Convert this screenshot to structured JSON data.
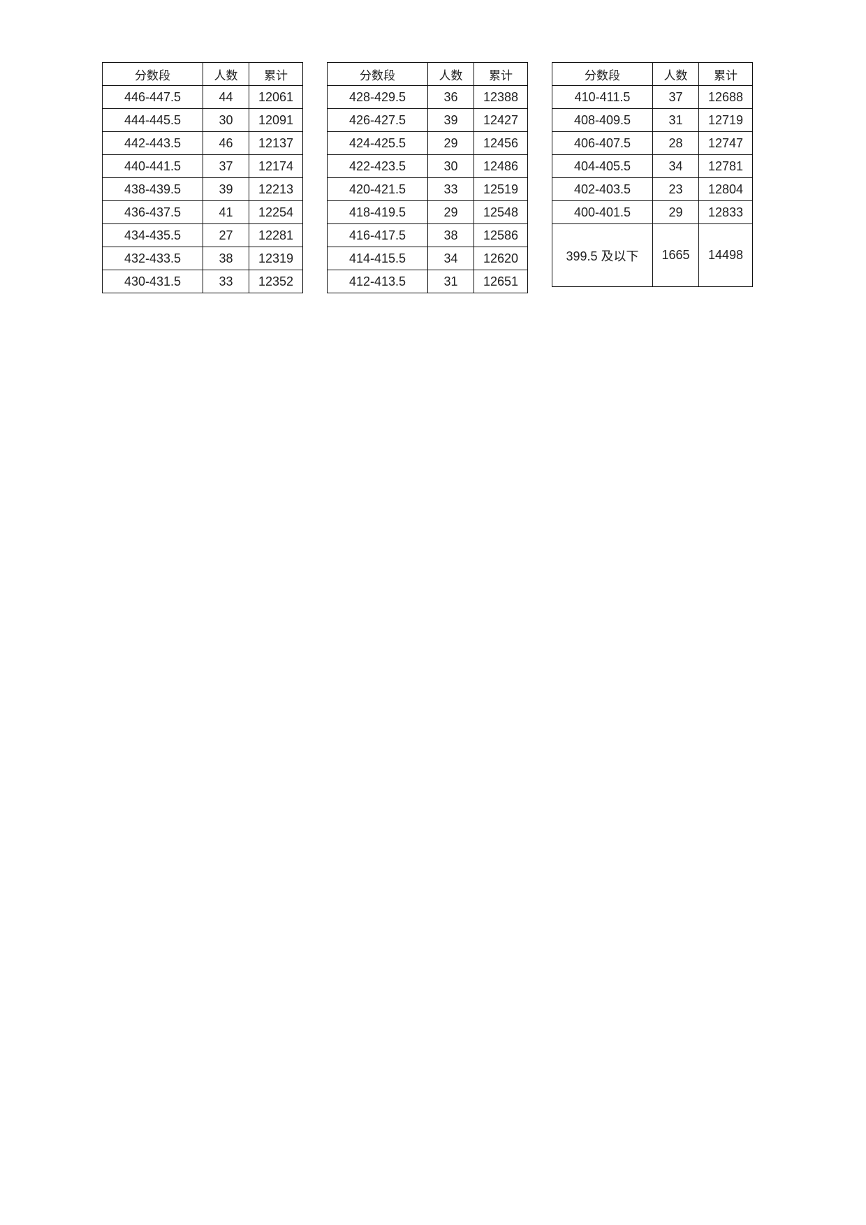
{
  "headers": [
    "分数段",
    "人数",
    "累计"
  ],
  "tables": [
    {
      "rows": [
        [
          "446-447.5",
          "44",
          "12061"
        ],
        [
          "444-445.5",
          "30",
          "12091"
        ],
        [
          "442-443.5",
          "46",
          "12137"
        ],
        [
          "440-441.5",
          "37",
          "12174"
        ],
        [
          "438-439.5",
          "39",
          "12213"
        ],
        [
          "436-437.5",
          "41",
          "12254"
        ],
        [
          "434-435.5",
          "27",
          "12281"
        ],
        [
          "432-433.5",
          "38",
          "12319"
        ],
        [
          "430-431.5",
          "33",
          "12352"
        ]
      ]
    },
    {
      "rows": [
        [
          "428-429.5",
          "36",
          "12388"
        ],
        [
          "426-427.5",
          "39",
          "12427"
        ],
        [
          "424-425.5",
          "29",
          "12456"
        ],
        [
          "422-423.5",
          "30",
          "12486"
        ],
        [
          "420-421.5",
          "33",
          "12519"
        ],
        [
          "418-419.5",
          "29",
          "12548"
        ],
        [
          "416-417.5",
          "38",
          "12586"
        ],
        [
          "414-415.5",
          "34",
          "12620"
        ],
        [
          "412-413.5",
          "31",
          "12651"
        ]
      ]
    },
    {
      "rows": [
        [
          "410-411.5",
          "37",
          "12688"
        ],
        [
          "408-409.5",
          "31",
          "12719"
        ],
        [
          "406-407.5",
          "28",
          "12747"
        ],
        [
          "404-405.5",
          "34",
          "12781"
        ],
        [
          "402-403.5",
          "23",
          "12804"
        ],
        [
          "400-401.5",
          "29",
          "12833"
        ],
        [
          "399.5 及以下",
          "1665",
          "14498"
        ]
      ]
    }
  ]
}
